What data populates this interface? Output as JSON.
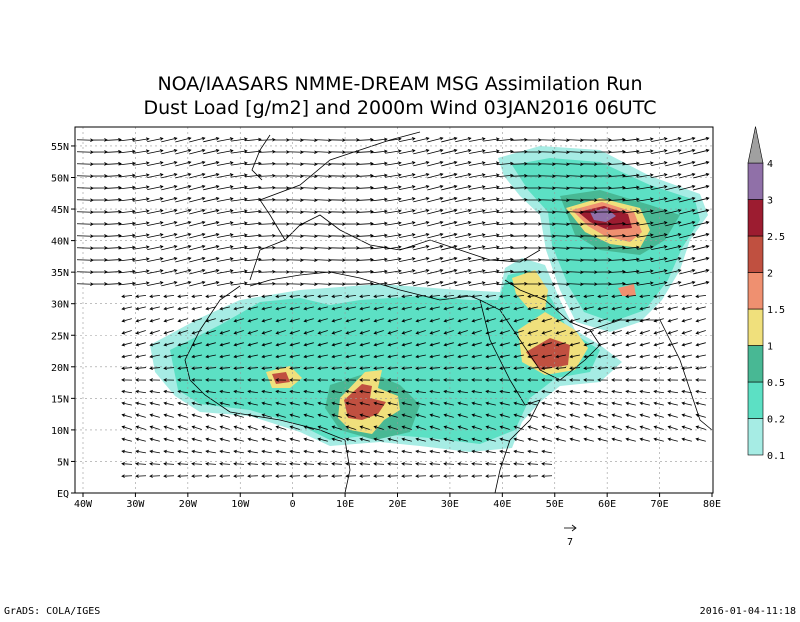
{
  "header": {
    "title": "NOA/IAASARS NMME-DREAM MSG Assimilation Run",
    "subtitle": "Dust Load [g/m2] and 2000m Wind 03JAN2016 06UTC"
  },
  "map": {
    "lon_ticks": [
      {
        "value": -40,
        "label": "40W"
      },
      {
        "value": -30,
        "label": "30W"
      },
      {
        "value": -20,
        "label": "20W"
      },
      {
        "value": -10,
        "label": "10W"
      },
      0,
      {
        "value": 10,
        "label": "10E"
      },
      {
        "value": 20,
        "label": "20E"
      },
      {
        "value": 30,
        "label": "30E"
      },
      {
        "value": 40,
        "label": "40E"
      },
      {
        "value": 50,
        "label": "50E"
      },
      {
        "value": 60,
        "label": "60E"
      },
      {
        "value": 70,
        "label": "70E"
      },
      {
        "value": 80,
        "label": "80E"
      }
    ],
    "lat_ticks": [
      {
        "value": 0,
        "label": "EQ"
      },
      {
        "value": 5,
        "label": "5N"
      },
      {
        "value": 10,
        "label": "10N"
      },
      {
        "value": 15,
        "label": "15N"
      },
      {
        "value": 20,
        "label": "20N"
      },
      {
        "value": 25,
        "label": "25N"
      },
      {
        "value": 30,
        "label": "30N"
      },
      {
        "value": 35,
        "label": "35N"
      },
      {
        "value": 40,
        "label": "40N"
      },
      {
        "value": 45,
        "label": "45N"
      },
      {
        "value": 50,
        "label": "50N"
      },
      {
        "value": 55,
        "label": "55N"
      }
    ],
    "reference_vector": 7
  },
  "colorbar": {
    "levels": [
      0.1,
      0.2,
      0.5,
      1,
      1.5,
      2,
      2.5,
      3,
      4
    ],
    "colors": [
      "#a6ece4",
      "#5ce0c4",
      "#48b894",
      "#f0e07c",
      "#ef9070",
      "#c05040",
      "#9c1c30",
      "#9070a8",
      "#a0a0a0"
    ]
  },
  "footer": {
    "left": "GrADS: COLA/IGES",
    "right": "2016-01-04-11:18"
  }
}
